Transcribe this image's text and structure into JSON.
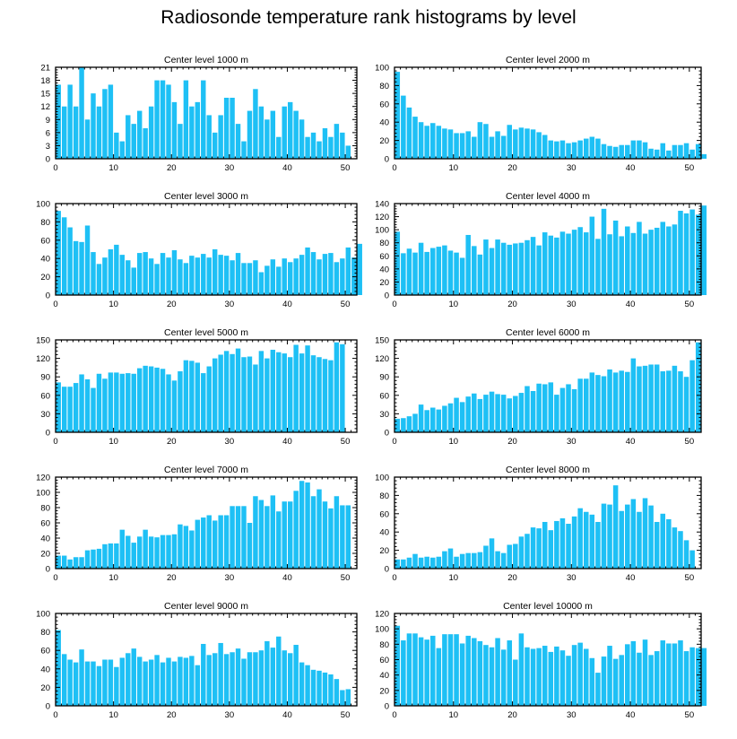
{
  "title": "Radiosonde temperature rank histograms by level",
  "bar_color": "#1ec0f5",
  "chart_data": [
    {
      "type": "bar",
      "title": "Center level 1000 m",
      "ylim": [
        0,
        21
      ],
      "yticks": [
        0,
        3,
        6,
        9,
        12,
        15,
        18,
        21
      ],
      "xlim": [
        0,
        52
      ],
      "xticks": [
        0,
        10,
        20,
        30,
        40,
        50
      ],
      "values": [
        17,
        12,
        17,
        12,
        21,
        9,
        15,
        12,
        16,
        17,
        6,
        4,
        10,
        8,
        11,
        7,
        12,
        18,
        18,
        17,
        13,
        8,
        18,
        12,
        13,
        18,
        10,
        6,
        10,
        14,
        14,
        8,
        4,
        11,
        16,
        12,
        9,
        11,
        5,
        12,
        13,
        11,
        9,
        5,
        6,
        4,
        7,
        5,
        8,
        6,
        3
      ]
    },
    {
      "type": "bar",
      "title": "Center level 2000 m",
      "ylim": [
        0,
        100
      ],
      "yticks": [
        0,
        20,
        40,
        60,
        80,
        100
      ],
      "xlim": [
        0,
        52
      ],
      "xticks": [
        0,
        10,
        20,
        30,
        40,
        50
      ],
      "values": [
        95,
        69,
        56,
        46,
        40,
        36,
        39,
        36,
        33,
        32,
        28,
        28,
        30,
        24,
        40,
        38,
        24,
        30,
        25,
        37,
        32,
        34,
        33,
        32,
        29,
        26,
        20,
        19,
        20,
        17,
        18,
        20,
        22,
        24,
        22,
        16,
        14,
        13,
        15,
        15,
        20,
        20,
        18,
        11,
        10,
        17,
        9,
        15,
        15,
        17,
        10,
        16,
        5
      ]
    },
    {
      "type": "bar",
      "title": "Center level 3000 m",
      "ylim": [
        0,
        100
      ],
      "yticks": [
        0,
        20,
        40,
        60,
        80,
        100
      ],
      "xlim": [
        0,
        52
      ],
      "xticks": [
        0,
        10,
        20,
        30,
        40,
        50
      ],
      "values": [
        92,
        85,
        74,
        59,
        58,
        76,
        47,
        34,
        41,
        50,
        55,
        44,
        38,
        30,
        46,
        47,
        40,
        34,
        46,
        41,
        49,
        39,
        35,
        43,
        41,
        45,
        41,
        50,
        44,
        43,
        38,
        46,
        35,
        35,
        38,
        25,
        32,
        39,
        31,
        40,
        36,
        40,
        44,
        52,
        47,
        39,
        45,
        46,
        36,
        40,
        52,
        41,
        56
      ]
    },
    {
      "type": "bar",
      "title": "Center level 4000 m",
      "ylim": [
        0,
        140
      ],
      "yticks": [
        0,
        20,
        40,
        60,
        80,
        100,
        120,
        140
      ],
      "xlim": [
        0,
        52
      ],
      "xticks": [
        0,
        10,
        20,
        30,
        40,
        50
      ],
      "values": [
        97,
        64,
        71,
        65,
        80,
        66,
        72,
        74,
        76,
        68,
        65,
        57,
        92,
        75,
        62,
        85,
        72,
        85,
        80,
        77,
        79,
        80,
        84,
        89,
        76,
        96,
        91,
        88,
        97,
        94,
        100,
        104,
        96,
        120,
        86,
        132,
        93,
        114,
        90,
        105,
        95,
        112,
        94,
        100,
        103,
        112,
        105,
        108,
        129,
        125,
        131,
        123,
        137
      ]
    },
    {
      "type": "bar",
      "title": "Center level 5000 m",
      "ylim": [
        0,
        150
      ],
      "yticks": [
        0,
        30,
        60,
        90,
        120,
        150
      ],
      "xlim": [
        0,
        52
      ],
      "xticks": [
        0,
        10,
        20,
        30,
        40,
        50
      ],
      "values": [
        81,
        74,
        74,
        80,
        94,
        86,
        72,
        95,
        87,
        97,
        97,
        95,
        96,
        95,
        104,
        108,
        107,
        105,
        103,
        94,
        84,
        99,
        117,
        116,
        113,
        96,
        107,
        120,
        126,
        132,
        127,
        136,
        122,
        123,
        110,
        132,
        120,
        134,
        130,
        128,
        122,
        142,
        128,
        141,
        125,
        122,
        119,
        117,
        146,
        143
      ]
    },
    {
      "type": "bar",
      "title": "Center level 6000 m",
      "ylim": [
        0,
        150
      ],
      "yticks": [
        0,
        30,
        60,
        90,
        120,
        150
      ],
      "xlim": [
        0,
        52
      ],
      "xticks": [
        0,
        10,
        20,
        30,
        40,
        50
      ],
      "values": [
        22,
        23,
        26,
        30,
        45,
        36,
        40,
        37,
        43,
        47,
        56,
        49,
        58,
        63,
        54,
        61,
        66,
        62,
        61,
        55,
        59,
        64,
        75,
        67,
        79,
        78,
        81,
        61,
        72,
        78,
        70,
        87,
        87,
        97,
        93,
        91,
        102,
        97,
        100,
        98,
        120,
        107,
        108,
        110,
        110,
        99,
        100,
        108,
        99,
        90,
        117,
        146
      ]
    },
    {
      "type": "bar",
      "title": "Center level 7000 m",
      "ylim": [
        0,
        120
      ],
      "yticks": [
        0,
        20,
        40,
        60,
        80,
        100,
        120
      ],
      "xlim": [
        0,
        52
      ],
      "xticks": [
        0,
        10,
        20,
        30,
        40,
        50
      ],
      "values": [
        17,
        17,
        12,
        15,
        15,
        24,
        25,
        26,
        32,
        33,
        33,
        51,
        43,
        34,
        42,
        51,
        42,
        41,
        44,
        44,
        45,
        58,
        56,
        50,
        64,
        67,
        70,
        63,
        70,
        70,
        82,
        82,
        82,
        60,
        95,
        90,
        82,
        96,
        75,
        88,
        88,
        102,
        115,
        113,
        95,
        104,
        88,
        79,
        95,
        83,
        83
      ]
    },
    {
      "type": "bar",
      "title": "Center level 8000 m",
      "ylim": [
        0,
        100
      ],
      "yticks": [
        0,
        20,
        40,
        60,
        80,
        100
      ],
      "xlim": [
        0,
        52
      ],
      "xticks": [
        0,
        10,
        20,
        30,
        40,
        50
      ],
      "values": [
        10,
        10,
        12,
        16,
        12,
        13,
        12,
        13,
        19,
        22,
        13,
        16,
        17,
        17,
        18,
        25,
        33,
        19,
        17,
        26,
        27,
        35,
        38,
        45,
        44,
        51,
        42,
        52,
        55,
        49,
        57,
        66,
        62,
        59,
        51,
        71,
        70,
        91,
        63,
        70,
        76,
        62,
        77,
        69,
        51,
        60,
        54,
        45,
        41,
        31,
        20
      ]
    },
    {
      "type": "bar",
      "title": "Center level 9000 m",
      "ylim": [
        0,
        100
      ],
      "yticks": [
        0,
        20,
        40,
        60,
        80,
        100
      ],
      "xlim": [
        0,
        52
      ],
      "xticks": [
        0,
        10,
        20,
        30,
        40,
        50
      ],
      "values": [
        82,
        56,
        50,
        47,
        61,
        48,
        48,
        43,
        50,
        50,
        42,
        52,
        57,
        62,
        53,
        48,
        50,
        55,
        47,
        52,
        48,
        53,
        52,
        54,
        44,
        67,
        55,
        57,
        68,
        56,
        58,
        62,
        51,
        58,
        58,
        60,
        70,
        63,
        75,
        60,
        57,
        66,
        47,
        44,
        39,
        38,
        36,
        34,
        29,
        17,
        18
      ]
    },
    {
      "type": "bar",
      "title": "Center level 10000 m",
      "ylim": [
        0,
        120
      ],
      "yticks": [
        0,
        20,
        40,
        60,
        80,
        100,
        120
      ],
      "xlim": [
        0,
        52
      ],
      "xticks": [
        0,
        10,
        20,
        30,
        40,
        50
      ],
      "values": [
        104,
        85,
        94,
        94,
        89,
        86,
        91,
        75,
        93,
        93,
        93,
        81,
        91,
        88,
        84,
        79,
        76,
        88,
        73,
        85,
        60,
        94,
        76,
        74,
        75,
        78,
        70,
        77,
        72,
        65,
        79,
        82,
        74,
        62,
        43,
        64,
        78,
        61,
        66,
        80,
        84,
        69,
        86,
        66,
        71,
        85,
        81,
        81,
        85,
        71,
        76,
        75,
        75
      ]
    }
  ]
}
